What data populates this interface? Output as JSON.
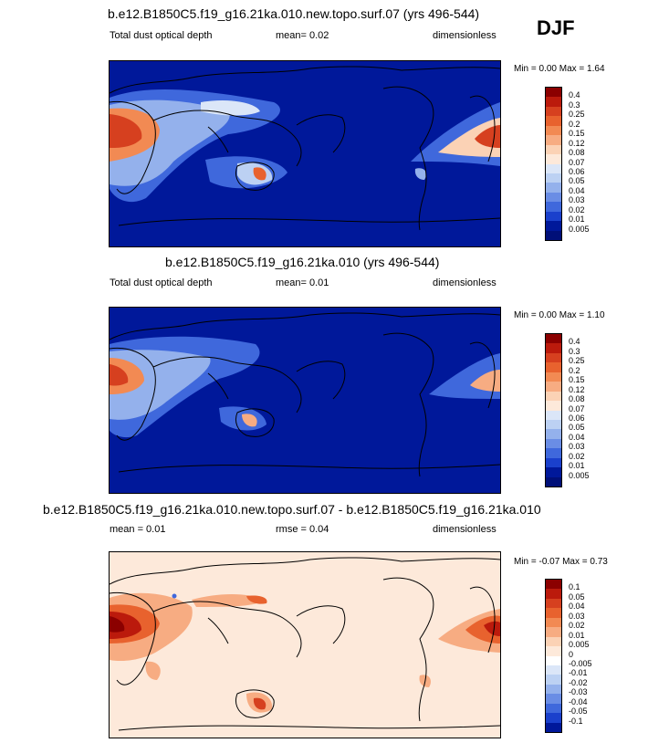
{
  "season": "DJF",
  "panels": [
    {
      "title": "b.e12.B1850C5.f19_g16.21ka.010.new.topo.surf.07 (yrs 496-544)",
      "left": "Total dust optical depth",
      "middle": "mean=   0.02",
      "right": "dimensionless",
      "minmax": "Min =   0.00 Max =   1.64",
      "colorbar_labels": [
        "0.4",
        "0.3",
        "0.25",
        "0.2",
        "0.15",
        "0.12",
        "0.08",
        "0.07",
        "0.06",
        "0.05",
        "0.04",
        "0.03",
        "0.02",
        "0.01",
        "0.005"
      ],
      "colors": [
        "#8b0000",
        "#bb1a0c",
        "#d6401f",
        "#e8622e",
        "#f28a53",
        "#f7ac82",
        "#fbd2b5",
        "#fde9da",
        "#dbe6f8",
        "#bcd1f3",
        "#94b1ec",
        "#6a8de5",
        "#3f68dc",
        "#1a40cc",
        "#00189a",
        "#000f78"
      ]
    },
    {
      "title": "b.e12.B1850C5.f19_g16.21ka.010 (yrs 496-544)",
      "left": "Total dust optical depth",
      "middle": "mean=   0.01",
      "right": "dimensionless",
      "minmax": "Min =   0.00 Max =   1.10",
      "colorbar_labels": [
        "0.4",
        "0.3",
        "0.25",
        "0.2",
        "0.15",
        "0.12",
        "0.08",
        "0.07",
        "0.06",
        "0.05",
        "0.04",
        "0.03",
        "0.02",
        "0.01",
        "0.005"
      ],
      "colors": [
        "#8b0000",
        "#bb1a0c",
        "#d6401f",
        "#e8622e",
        "#f28a53",
        "#f7ac82",
        "#fbd2b5",
        "#fde9da",
        "#dbe6f8",
        "#bcd1f3",
        "#94b1ec",
        "#6a8de5",
        "#3f68dc",
        "#1a40cc",
        "#00189a",
        "#000f78"
      ]
    },
    {
      "title": "b.e12.B1850C5.f19_g16.21ka.010.new.topo.surf.07 - b.e12.B1850C5.f19_g16.21ka.010",
      "left": "mean =   0.01",
      "middle": "rmse =   0.04",
      "right": "dimensionless",
      "minmax": "Min =  -0.07 Max =   0.73",
      "colorbar_labels": [
        "0.1",
        "0.05",
        "0.04",
        "0.03",
        "0.02",
        "0.01",
        "0.005",
        "0",
        "-0.005",
        "-0.01",
        "-0.02",
        "-0.03",
        "-0.04",
        "-0.05",
        "-0.1"
      ],
      "colors": [
        "#8b0000",
        "#bb1a0c",
        "#d6401f",
        "#e8622e",
        "#f28a53",
        "#f7ac82",
        "#fbd2b5",
        "#fde9da",
        "#ffffff",
        "#dbe6f8",
        "#bcd1f3",
        "#94b1ec",
        "#6a8de5",
        "#3f68dc",
        "#1a40cc",
        "#00189a"
      ]
    }
  ],
  "chart_data": [
    {
      "type": "heatmap",
      "title": "b.e12.B1850C5.f19_g16.21ka.010.new.topo.surf.07 (yrs 496-544)",
      "variable": "Total dust optical depth",
      "units": "dimensionless",
      "mean": 0.02,
      "min": 0.0,
      "max": 1.64,
      "levels": [
        0.005,
        0.01,
        0.02,
        0.03,
        0.04,
        0.05,
        0.06,
        0.07,
        0.08,
        0.12,
        0.15,
        0.2,
        0.25,
        0.3,
        0.4
      ]
    },
    {
      "type": "heatmap",
      "title": "b.e12.B1850C5.f19_g16.21ka.010 (yrs 496-544)",
      "variable": "Total dust optical depth",
      "units": "dimensionless",
      "mean": 0.01,
      "min": 0.0,
      "max": 1.1,
      "levels": [
        0.005,
        0.01,
        0.02,
        0.03,
        0.04,
        0.05,
        0.06,
        0.07,
        0.08,
        0.12,
        0.15,
        0.2,
        0.25,
        0.3,
        0.4
      ]
    },
    {
      "type": "heatmap",
      "title": "b.e12.B1850C5.f19_g16.21ka.010.new.topo.surf.07 - b.e12.B1850C5.f19_g16.21ka.010",
      "units": "dimensionless",
      "mean": 0.01,
      "rmse": 0.04,
      "min": -0.07,
      "max": 0.73,
      "levels": [
        -0.1,
        -0.05,
        -0.04,
        -0.03,
        -0.02,
        -0.01,
        -0.005,
        0,
        0.005,
        0.01,
        0.02,
        0.03,
        0.04,
        0.05,
        0.1
      ]
    }
  ]
}
